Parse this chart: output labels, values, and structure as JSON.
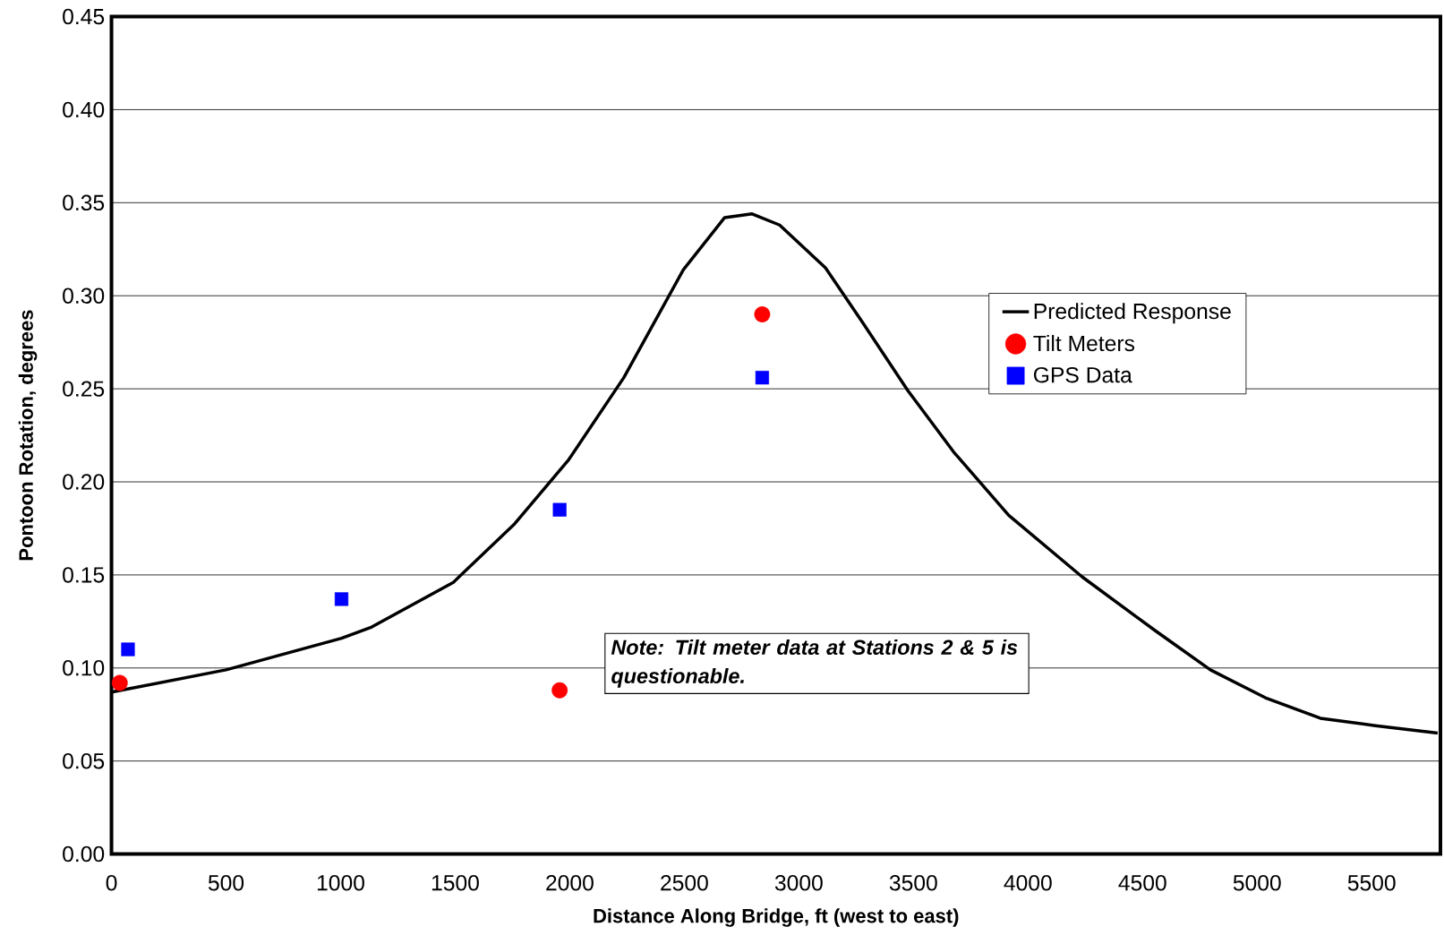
{
  "chart_data": {
    "type": "line",
    "xlabel": "Distance Along Bridge, ft (west to east)",
    "ylabel": "Pontoon Rotation, degrees",
    "xlim": [
      0,
      5800
    ],
    "xticks": [
      0,
      500,
      1000,
      1500,
      2000,
      2500,
      3000,
      3500,
      4000,
      4500,
      5000,
      5500
    ],
    "ylim": [
      0,
      0.45
    ],
    "yticks": [
      {
        "value": 0,
        "label": "0.00"
      },
      {
        "value": 0.05,
        "label": "0.05"
      },
      {
        "value": 0.1,
        "label": "0.10"
      },
      {
        "value": 0.15,
        "label": "0.15"
      },
      {
        "value": 0.2,
        "label": "0.20"
      },
      {
        "value": 0.25,
        "label": "0.25"
      },
      {
        "value": 0.3,
        "label": "0.30"
      },
      {
        "value": 0.35,
        "label": "0.35"
      },
      {
        "value": 0.4,
        "label": "0.40"
      },
      {
        "value": 0.45,
        "label": "0.45"
      }
    ],
    "grid": "y",
    "legend": "right",
    "annotations": [
      "Note:  Tilt meter data at Stations 2 & 5 is questionable."
    ],
    "series": [
      {
        "name": "Predicted Response",
        "color": "#000000",
        "marker": "none",
        "x": [
          0,
          500,
          1004,
          1136,
          1492,
          1756,
          1996,
          2236,
          2496,
          2676,
          2796,
          2916,
          3116,
          3276,
          3476,
          3676,
          3916,
          4236,
          4556,
          4796,
          5036,
          5276,
          5516,
          5788
        ],
        "values": [
          0.087,
          0.099,
          0.116,
          0.122,
          0.146,
          0.177,
          0.212,
          0.256,
          0.314,
          0.342,
          0.344,
          0.338,
          0.315,
          0.286,
          0.249,
          0.216,
          0.182,
          0.149,
          0.12,
          0.099,
          0.084,
          0.073,
          0.069,
          0.065
        ]
      },
      {
        "name": "Tilt Meters",
        "type": "scatter",
        "color": "#ff0000",
        "marker": "circle",
        "x": [
          36,
          1956,
          2840
        ],
        "values": [
          0.092,
          0.088,
          0.29
        ]
      },
      {
        "name": "GPS Data",
        "type": "scatter",
        "color": "#0000ff",
        "marker": "square",
        "x": [
          72,
          1004,
          1956,
          2840
        ],
        "values": [
          0.11,
          0.137,
          0.185,
          0.256
        ]
      }
    ]
  }
}
